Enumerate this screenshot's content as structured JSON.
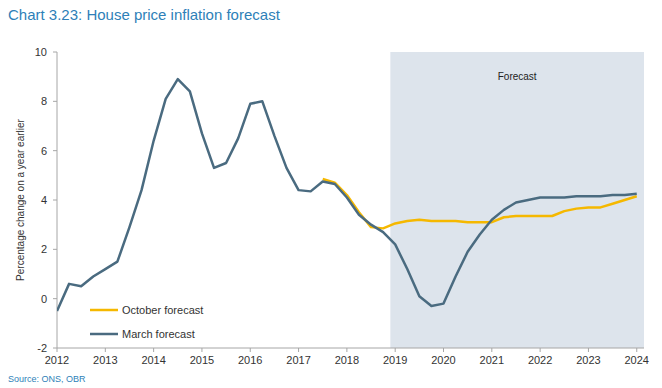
{
  "chart_data": {
    "type": "line",
    "title": "Chart 3.23: House price inflation forecast",
    "y_label": "Percentage change on a year earlier",
    "source": "Source: ONS, OBR",
    "annotations": [
      {
        "text": "Forecast",
        "x_start": 2018.9
      }
    ],
    "x": [
      2012,
      2012.25,
      2012.5,
      2012.75,
      2013,
      2013.25,
      2013.5,
      2013.75,
      2014,
      2014.25,
      2014.5,
      2014.75,
      2015,
      2015.25,
      2015.5,
      2015.75,
      2016,
      2016.25,
      2016.5,
      2016.75,
      2017,
      2017.25,
      2017.5,
      2017.75,
      2018,
      2018.25,
      2018.5,
      2018.75,
      2019,
      2019.25,
      2019.5,
      2019.75,
      2020,
      2020.25,
      2020.5,
      2020.75,
      2021,
      2021.25,
      2021.5,
      2021.75,
      2022,
      2022.25,
      2022.5,
      2022.75,
      2023,
      2023.25,
      2023.5,
      2023.75,
      2024
    ],
    "series": [
      {
        "name": "October forecast",
        "color": "#f5b800",
        "values": [
          null,
          null,
          null,
          null,
          null,
          null,
          null,
          null,
          null,
          null,
          null,
          null,
          null,
          null,
          null,
          null,
          null,
          null,
          null,
          null,
          null,
          null,
          4.85,
          4.7,
          4.2,
          3.5,
          2.9,
          2.85,
          3.05,
          3.15,
          3.2,
          3.15,
          3.15,
          3.15,
          3.1,
          3.1,
          3.1,
          3.3,
          3.35,
          3.35,
          3.35,
          3.35,
          3.55,
          3.65,
          3.7,
          3.7,
          3.85,
          4.0,
          4.15
        ]
      },
      {
        "name": "March forecast",
        "color": "#4a6b80",
        "values": [
          -0.5,
          0.6,
          0.5,
          0.9,
          1.2,
          1.5,
          2.9,
          4.4,
          6.4,
          8.1,
          8.9,
          8.4,
          6.7,
          5.3,
          5.5,
          6.5,
          7.9,
          8.0,
          6.6,
          5.3,
          4.4,
          4.35,
          4.75,
          4.65,
          4.1,
          3.4,
          3.0,
          2.7,
          2.2,
          1.2,
          0.1,
          -0.3,
          -0.2,
          0.9,
          1.9,
          2.6,
          3.2,
          3.6,
          3.9,
          4.0,
          4.1,
          4.1,
          4.1,
          4.15,
          4.15,
          4.15,
          4.2,
          4.2,
          4.25
        ]
      }
    ],
    "xlim": [
      2012,
      2024.15
    ],
    "xticks": [
      2012,
      2013,
      2014,
      2015,
      2016,
      2017,
      2018,
      2019,
      2020,
      2021,
      2022,
      2023,
      2024
    ],
    "ylim": [
      -2,
      10
    ],
    "yticks": [
      -2,
      0,
      2,
      4,
      6,
      8,
      10
    ],
    "grid": false,
    "legend": "lower left"
  }
}
